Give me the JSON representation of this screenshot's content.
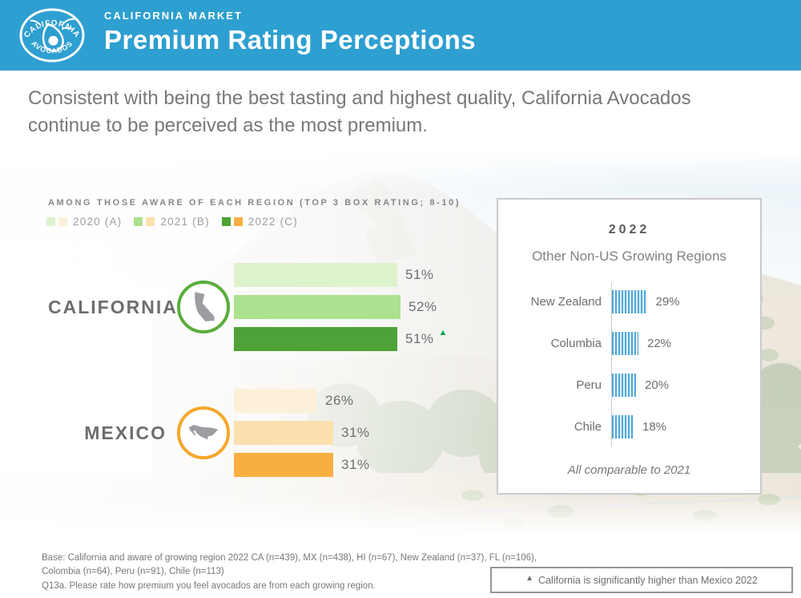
{
  "header": {
    "eyebrow": "CALIFORNIA MARKET",
    "title": "Premium Rating Perceptions",
    "accent_color": "#2E9FD1"
  },
  "logo": {
    "top_text": "CALIFORNIA",
    "bottom_text": "AVOCADOS"
  },
  "subtitle": "Consistent with being the best tasting and highest quality, California Avocados continue to be perceived as the most premium.",
  "chart_data": [
    {
      "type": "bar",
      "orientation": "horizontal",
      "title": "AMONG THOSE AWARE OF EACH REGION (TOP 3 BOX RATING; 8-10)",
      "categories": [
        "CALIFORNIA",
        "MEXICO"
      ],
      "series": [
        {
          "name": "2020 (A)",
          "values": [
            51,
            26
          ]
        },
        {
          "name": "2021 (B)",
          "values": [
            52,
            31
          ]
        },
        {
          "name": "2022 (C)",
          "values": [
            51,
            31
          ]
        }
      ],
      "value_suffix": "%",
      "legend_position": "top",
      "annotations": [
        "California 2022 is significantly higher than Mexico 2022"
      ]
    },
    {
      "type": "bar",
      "orientation": "horizontal",
      "title": "2022",
      "subtitle": "Other Non-US Growing Regions",
      "categories": [
        "New Zealand",
        "Columbia",
        "Peru",
        "Chile"
      ],
      "values": [
        29,
        22,
        20,
        18
      ],
      "value_suffix": "%",
      "footnote": "All comparable to 2021"
    }
  ],
  "main_chart": {
    "heading": "AMONG THOSE AWARE OF EACH REGION (TOP 3 BOX RATING; 8-10)",
    "legend": [
      {
        "label": "2020 (A)",
        "green": "#DDF2CD",
        "orange": "#FCF0D8"
      },
      {
        "label": "2021 (B)",
        "green": "#ACE18F",
        "orange": "#FBE0AE"
      },
      {
        "label": "2022 (C)",
        "green": "#4FA237",
        "orange": "#F9AE42"
      }
    ],
    "sig_color": "#00A551",
    "groups": [
      {
        "name": "CALIFORNIA",
        "icon": "california",
        "ring_color": "#5AAD3C",
        "bars": [
          {
            "year": "2020",
            "value": 51,
            "label": "51%",
            "color": "#DDF2CD"
          },
          {
            "year": "2021",
            "value": 52,
            "label": "52%",
            "color": "#ACE18F"
          },
          {
            "year": "2022",
            "value": 51,
            "label": "51%",
            "color": "#4FA237",
            "significant": true
          }
        ]
      },
      {
        "name": "MEXICO",
        "icon": "mexico",
        "ring_color": "#F6A72B",
        "bars": [
          {
            "year": "2020",
            "value": 26,
            "label": "26%",
            "color": "#FCF0D8"
          },
          {
            "year": "2021",
            "value": 31,
            "label": "31%",
            "color": "#FBE0AE"
          },
          {
            "year": "2022",
            "value": 31,
            "label": "31%",
            "color": "#F9AE42"
          }
        ]
      }
    ]
  },
  "side_panel": {
    "year": "2022",
    "subtitle": "Other Non-US Growing Regions",
    "bar_color": "#4FA8D8",
    "rows": [
      {
        "label": "New Zealand",
        "value": 29,
        "value_label": "29%"
      },
      {
        "label": "Columbia",
        "value": 22,
        "value_label": "22%"
      },
      {
        "label": "Peru",
        "value": 20,
        "value_label": "20%"
      },
      {
        "label": "Chile",
        "value": 18,
        "value_label": "18%"
      }
    ],
    "footnote": "All comparable to 2021"
  },
  "footer": {
    "base_line1": "Base: California and aware of growing region 2022 CA (n=439), MX (n=438), HI (n=67), New Zealand (n=37), FL (n=106),",
    "base_line2": "Colombia (n=64), Peru (n=91), Chile (n=113)",
    "question": "Q13a. Please rate how premium you feel avocados are from each growing region.",
    "significance_note": "California is significantly higher than Mexico 2022"
  }
}
